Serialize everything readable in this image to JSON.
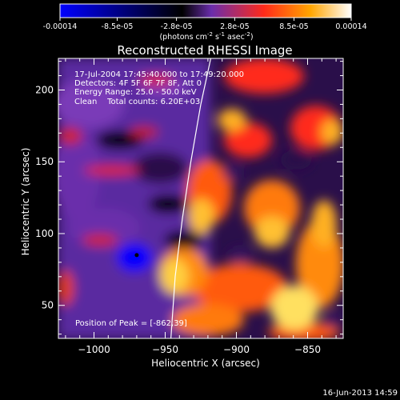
{
  "chart_data": {
    "type": "heatmap",
    "title": "Reconstructed RHESSI Image",
    "colorbar": {
      "ticks": [
        "-0.00014",
        "-8.5e-05",
        "-2.8e-05",
        "2.8e-05",
        "8.5e-05",
        "0.00014"
      ],
      "tick_values": [
        -0.00014,
        -8.5e-05,
        -2.8e-05,
        2.8e-05,
        8.5e-05,
        0.00014
      ],
      "range": [
        -0.00014,
        0.00014
      ],
      "label_parts": [
        "(photons cm",
        "-2",
        " s",
        "-1",
        " asec",
        "-2",
        ")"
      ],
      "colors": [
        "#0000ff",
        "#000000",
        "#6a2dab",
        "#ff2a1a",
        "#ffa500",
        "#ffffff"
      ]
    },
    "xlabel": "Heliocentric X (arcsec)",
    "ylabel": "Heliocentric Y (arcsec)",
    "xlim": [
      -1025,
      -825
    ],
    "ylim": [
      27,
      222
    ],
    "xticks": [
      -1000,
      -950,
      -900,
      -850
    ],
    "yticks": [
      50,
      100,
      150,
      200
    ],
    "annotations": {
      "time_range": "17-Jul-2004 17:45:40.000 to 17:49:20.000",
      "detectors": "Detectors: 4F 5F 6F 7F 8F, Att 0",
      "energy": "Energy Range: 25.0 - 50.0 keV",
      "clean": "Clean    Total counts: 6.20E+03",
      "peak": "Position of Peak = [-862,39]"
    },
    "limb_curve": [
      [
        -918,
        222
      ],
      [
        -925,
        190
      ],
      [
        -932,
        150
      ],
      [
        -938,
        110
      ],
      [
        -943,
        70
      ],
      [
        -946,
        27
      ]
    ],
    "minimum_marker": [
      -970,
      85
    ]
  },
  "footer": {
    "timestamp": "16-Jun-2013 14:59"
  }
}
